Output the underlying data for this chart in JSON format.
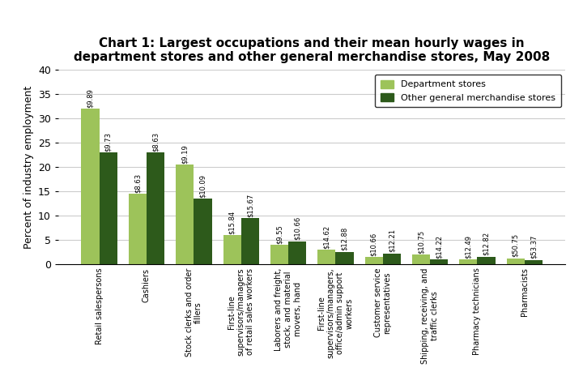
{
  "title": "Chart 1: Largest occupations and their mean hourly wages in\ndepartment stores and other general merchandise stores, May 2008",
  "ylabel": "Percent of industry employment",
  "ylim": [
    0,
    40
  ],
  "yticks": [
    0,
    5,
    10,
    15,
    20,
    25,
    30,
    35,
    40
  ],
  "categories": [
    "Retail salespersons",
    "Cashiers",
    "Stock clerks and order\nfillers",
    "First-line\nsupervisors/managers\nof retail sales workers",
    "Laborers and freight,\nstock, and material\nmovers, hand",
    "First-line\nsupervisors/managers,\noffice/admin support\nworkers",
    "Customer service\nrepresentatives",
    "Shipping, receiving, and\ntraffic clerks",
    "Pharmacy technicians",
    "Pharmacists"
  ],
  "dept_values": [
    32.0,
    14.5,
    20.5,
    6.0,
    4.0,
    3.0,
    1.5,
    2.0,
    1.0,
    1.2
  ],
  "other_values": [
    23.0,
    23.0,
    13.5,
    9.5,
    4.8,
    2.6,
    2.2,
    1.0,
    1.6,
    0.9
  ],
  "dept_wages": [
    "$9.89",
    "$8.63",
    "$9.19",
    "$15.84",
    "$9.55",
    "$14.62",
    "$10.66",
    "$10.75",
    "$12.49",
    "$50.75"
  ],
  "other_wages": [
    "$9.73",
    "$8.63",
    "$10.09",
    "$15.67",
    "$10.66",
    "$12.88",
    "$12.21",
    "$14.22",
    "$12.82",
    "$53.37"
  ],
  "dept_color": "#9dc35a",
  "other_color": "#2d5a1b",
  "legend_dept": "Department stores",
  "legend_other": "Other general merchandise stores",
  "bar_width": 0.38,
  "title_fontsize": 11,
  "tick_fontsize": 7,
  "wage_fontsize": 6
}
